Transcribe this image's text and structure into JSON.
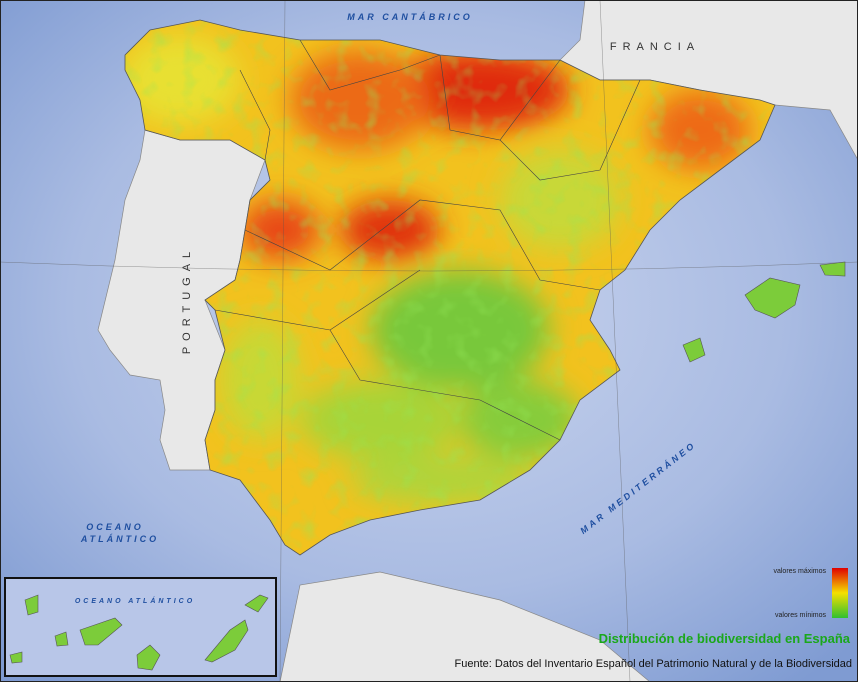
{
  "labels": {
    "mar_cantabrico": "MAR CANTÁBRICO",
    "francia": "FRANCIA",
    "portugal": "PORTUGAL",
    "oceano": "OCEANO",
    "atlantico": "ATLÁNTICO",
    "mar_mediterraneo": "MAR MEDITERRÁNEO",
    "inset_oceano": "OCEANO ATLÁNTICO"
  },
  "legend": {
    "max": "valores máximos",
    "min": "valores mínimos"
  },
  "title": "Distribución de biodiversidad en España",
  "source": "Fuente: Datos del Inventario Español del Patrimonio Natural y de la Biodiversidad"
}
